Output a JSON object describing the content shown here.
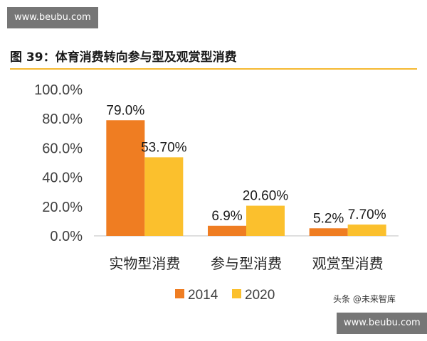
{
  "watermark": {
    "top": "www.beubu.com",
    "bottom": "www.beubu.com"
  },
  "header": {
    "title": "图 39：体育消费转向参与型及观赏型消费"
  },
  "credit": "头条 @未来智库",
  "chart_data": {
    "type": "bar",
    "categories": [
      "实物型消费",
      "参与型消费",
      "观赏型消费"
    ],
    "series": [
      {
        "name": "2014",
        "values": [
          79.0,
          6.9,
          5.2
        ],
        "labels": [
          "79.0%",
          "6.9%",
          "5.2%"
        ],
        "color": "#ef7d22"
      },
      {
        "name": "2020",
        "values": [
          53.7,
          20.6,
          7.7
        ],
        "labels": [
          "53.70%",
          "20.60%",
          "7.70%"
        ],
        "color": "#fbc02d"
      }
    ],
    "ylim": [
      0,
      100
    ],
    "yticks": [
      0,
      20,
      40,
      60,
      80,
      100
    ],
    "ytick_labels": [
      "0.0%",
      "20.0%",
      "40.0%",
      "60.0%",
      "80.0%",
      "100.0%"
    ],
    "grid": false,
    "legend_position": "bottom"
  }
}
